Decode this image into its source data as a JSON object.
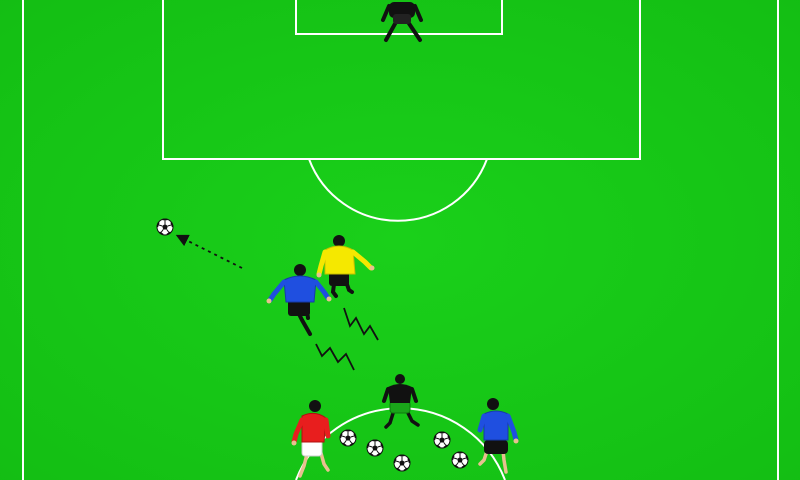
{
  "pitch": {
    "grass_color": "#16c616",
    "line_color": "#ffffff"
  },
  "players": [
    {
      "role": "goalkeeper",
      "shirt_color": "#111111",
      "shorts_color": "#111111",
      "pose": "ready"
    },
    {
      "role": "attacker",
      "shirt_color": "#f5e800",
      "shorts_color": "#111111",
      "pose": "running"
    },
    {
      "role": "attacker",
      "shirt_color": "#1f4fe0",
      "shorts_color": "#111111",
      "pose": "running"
    },
    {
      "role": "midfielder",
      "shirt_color": "#111111",
      "shorts_color": "#1aa51a",
      "pose": "ready"
    },
    {
      "role": "server",
      "shirt_color": "#e81e1e",
      "shorts_color": "#ffffff",
      "pose": "stepping"
    },
    {
      "role": "server",
      "shirt_color": "#1f4fe0",
      "shorts_color": "#111111",
      "pose": "stepping"
    }
  ],
  "balls": {
    "in_play": 1,
    "stock": 5
  },
  "movement": {
    "pass_line": "dotted-arrow",
    "dribble_paths": 2
  }
}
